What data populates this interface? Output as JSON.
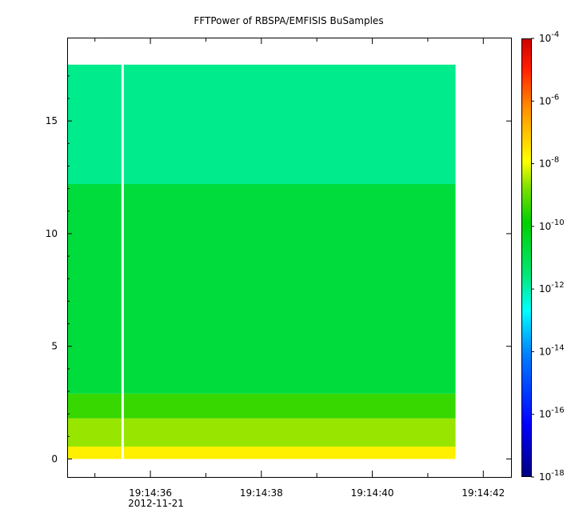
{
  "chart_data": {
    "type": "heatmap",
    "title": "FFTPower of RBSPA/EMFISIS  BuSamples",
    "xlabel": "",
    "ylabel": "",
    "x_ticks": [
      "19:14:36",
      "19:14:38",
      "19:14:40",
      "19:14:42"
    ],
    "x_tick_times_s": [
      36,
      38,
      40,
      42
    ],
    "x_minor_ticks_s": [
      35,
      37,
      39,
      41
    ],
    "x_date_label": "2012-11-21",
    "xlim_s": [
      34.5,
      42.5
    ],
    "data_time_range_s": [
      34.5,
      41.5
    ],
    "gap_time_s": 35.5,
    "ylim": [
      -0.8,
      18.7
    ],
    "y_ticks": [
      0,
      5,
      10,
      15
    ],
    "data_y_range": [
      0,
      17.5
    ],
    "bands": [
      {
        "y_range": [
          0,
          0.55
        ],
        "log_power": -7.7
      },
      {
        "y_range": [
          0.55,
          1.8
        ],
        "log_power": -8.6
      },
      {
        "y_range": [
          1.8,
          2.9
        ],
        "log_power": -9.4
      },
      {
        "y_range": [
          2.9,
          12.2
        ],
        "log_power": -10.7
      },
      {
        "y_range": [
          12.2,
          17.5
        ],
        "log_power": -11.7
      }
    ],
    "colorbar": {
      "scale": "log",
      "range_exp": [
        -18,
        -4
      ],
      "tick_exps": [
        -18,
        -16,
        -14,
        -12,
        -10,
        -8,
        -6,
        -4
      ],
      "tick_labels": [
        "10-18",
        "10-16",
        "10-14",
        "10-12",
        "10-10",
        "10-8",
        "10-6",
        "10-4"
      ]
    }
  }
}
